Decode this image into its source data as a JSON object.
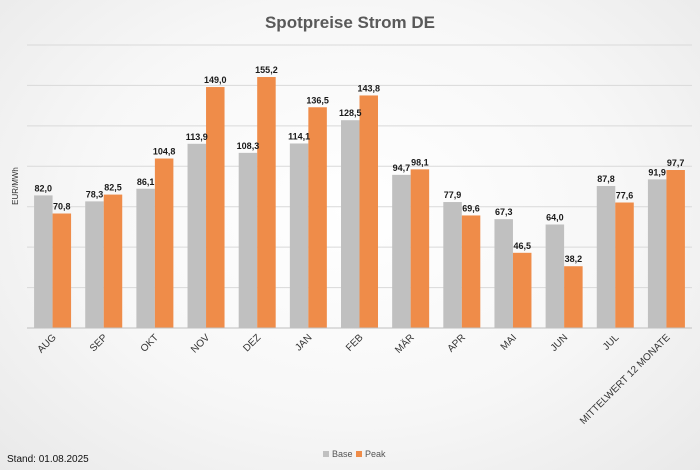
{
  "chart_data": {
    "type": "bar",
    "title": "Spotpreise Strom DE",
    "ylabel": "EUR/MWh",
    "xlabel": "",
    "ylim": [
      0,
      175
    ],
    "grid": true,
    "legend_position": "bottom",
    "categories": [
      "AUG",
      "SEP",
      "OKT",
      "NOV",
      "DEZ",
      "JAN",
      "FEB",
      "MÄR",
      "APR",
      "MAI",
      "JUN",
      "JUL",
      "MITTELWERT 12 MONATE"
    ],
    "series": [
      {
        "name": "Base",
        "color": "#c0c0c0",
        "values": [
          82.0,
          78.3,
          86.1,
          113.9,
          108.3,
          114.1,
          128.5,
          94.7,
          77.9,
          67.3,
          64.0,
          87.8,
          91.9
        ],
        "labels": [
          "82,0",
          "78,3",
          "86,1",
          "113,9",
          "108,3",
          "114,1",
          "128,5",
          "94,7",
          "77,9",
          "67,3",
          "64,0",
          "87,8",
          "91,9"
        ]
      },
      {
        "name": "Peak",
        "color": "#ef8c49",
        "values": [
          70.8,
          82.5,
          104.8,
          149.0,
          155.2,
          136.5,
          143.8,
          98.1,
          69.6,
          46.5,
          38.2,
          77.6,
          97.7
        ],
        "labels": [
          "70,8",
          "82,5",
          "104,8",
          "149,0",
          "155,2",
          "136,5",
          "143,8",
          "98,1",
          "69,6",
          "46,5",
          "38,2",
          "77,6",
          "97,7"
        ]
      }
    ]
  },
  "footer": {
    "stand": "Stand: 01.08.2025"
  }
}
